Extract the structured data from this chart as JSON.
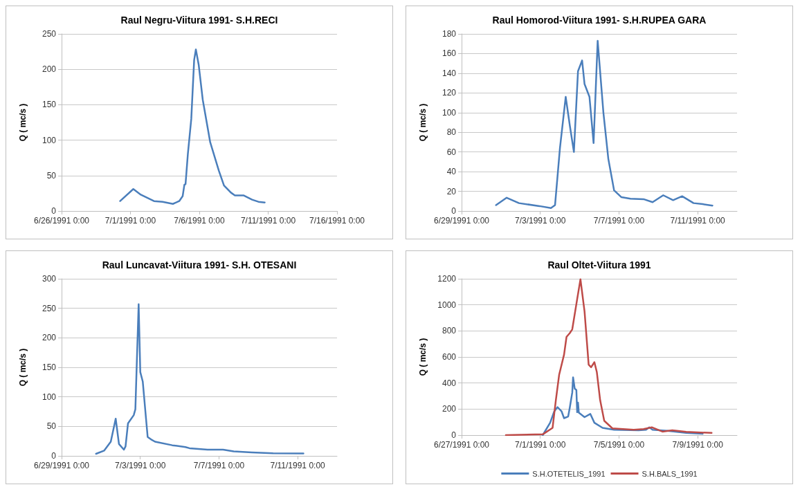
{
  "chart_data": [
    {
      "type": "line",
      "title": "Raul Negru-Viitura 1991- S.H.RECI",
      "ylabel": "Q ( mc/s )",
      "xlim": [
        "1991-06-26",
        "1991-07-16"
      ],
      "xticks": [
        {
          "value": "1991-06-26",
          "label": "6/26/1991 0:00"
        },
        {
          "value": "1991-07-01",
          "label": "7/1/1991 0:00"
        },
        {
          "value": "1991-07-06",
          "label": "7/6/1991 0:00"
        },
        {
          "value": "1991-07-11",
          "label": "7/11/1991 0:00"
        },
        {
          "value": "1991-07-16",
          "label": "7/16/1991 0:00"
        }
      ],
      "ylim": [
        0,
        250
      ],
      "yticks": [
        0,
        50,
        100,
        150,
        200,
        250
      ],
      "grid": "y",
      "legend": false,
      "marker": "none",
      "line_style": "solid",
      "series": [
        {
          "color": "#4a7ebb",
          "x": [
            "1991-06-30T06:00",
            "1991-07-01T05:00",
            "1991-07-01T18:00",
            "1991-07-02T17:00",
            "1991-07-03T08:00",
            "1991-07-04T02:00",
            "1991-07-04T13:00",
            "1991-07-04T19:00",
            "1991-07-04T22:00",
            "1991-07-05T00:00",
            "1991-07-05T04:00",
            "1991-07-05T10:00",
            "1991-07-05T15:00",
            "1991-07-05T18:00",
            "1991-07-05T23:00",
            "1991-07-06T06:00",
            "1991-07-06T19:00",
            "1991-07-07T10:00",
            "1991-07-07T19:00",
            "1991-07-08T07:00",
            "1991-07-08T14:00",
            "1991-07-09T05:00",
            "1991-07-09T20:00",
            "1991-07-10T07:00",
            "1991-07-10T18:00"
          ],
          "values": [
            14,
            31,
            23,
            14,
            13,
            10,
            14,
            21,
            37,
            38,
            80,
            130,
            213,
            228,
            206,
            157,
            97,
            57,
            36,
            26,
            22,
            22,
            16,
            13,
            12
          ]
        }
      ]
    },
    {
      "type": "line",
      "title": "Raul Homorod-Viitura 1991- S.H.RUPEA GARA",
      "ylabel": "Q ( mc/s )",
      "xlim": [
        "1991-06-29",
        "1991-07-13"
      ],
      "xticks": [
        {
          "value": "1991-06-29",
          "label": "6/29/1991 0:00"
        },
        {
          "value": "1991-07-03",
          "label": "7/3/1991 0:00"
        },
        {
          "value": "1991-07-07",
          "label": "7/7/1991 0:00"
        },
        {
          "value": "1991-07-11",
          "label": "7/11/1991 0:00"
        }
      ],
      "ylim": [
        0,
        180
      ],
      "yticks": [
        0,
        20,
        40,
        60,
        80,
        100,
        120,
        140,
        160,
        180
      ],
      "grid": "y",
      "legend": false,
      "marker": "none",
      "line_style": "solid",
      "series": [
        {
          "color": "#4a7ebb",
          "x": [
            "1991-06-30T18:00",
            "1991-07-01T07:00",
            "1991-07-01T22:00",
            "1991-07-02T23:00",
            "1991-07-03T13:00",
            "1991-07-03T18:00",
            "1991-07-04T00:00",
            "1991-07-04T07:00",
            "1991-07-04T12:00",
            "1991-07-04T17:00",
            "1991-07-04T22:00",
            "1991-07-05T03:00",
            "1991-07-05T06:00",
            "1991-07-05T12:00",
            "1991-07-05T17:00",
            "1991-07-05T22:00",
            "1991-07-06T05:00",
            "1991-07-06T11:00",
            "1991-07-06T18:00",
            "1991-07-07T03:00",
            "1991-07-07T14:00",
            "1991-07-08T06:00",
            "1991-07-08T17:00",
            "1991-07-09T06:00",
            "1991-07-09T18:00",
            "1991-07-10T05:00",
            "1991-07-10T19:00",
            "1991-07-11T06:00",
            "1991-07-11T18:00"
          ],
          "values": [
            6,
            13.5,
            8,
            5,
            3,
            6,
            64,
            116,
            87,
            60,
            142,
            153,
            129,
            116,
            69,
            173,
            100,
            53,
            21,
            14,
            12.5,
            12,
            9,
            16,
            11,
            15,
            8,
            7,
            5.5
          ]
        }
      ]
    },
    {
      "type": "line",
      "title": "Raul Luncavat-Viitura 1991- S.H. OTESANI",
      "ylabel": "Q ( mc/s )",
      "xlim": [
        "1991-06-29",
        "1991-07-13"
      ],
      "xticks": [
        {
          "value": "1991-06-29",
          "label": "6/29/1991 0:00"
        },
        {
          "value": "1991-07-03",
          "label": "7/3/1991 0:00"
        },
        {
          "value": "1991-07-07",
          "label": "7/7/1991 0:00"
        },
        {
          "value": "1991-07-11",
          "label": "7/11/1991 0:00"
        }
      ],
      "ylim": [
        0,
        300
      ],
      "yticks": [
        0,
        50,
        100,
        150,
        200,
        250,
        300
      ],
      "grid": "y",
      "legend": false,
      "marker": "none",
      "line_style": "solid",
      "series": [
        {
          "color": "#4a7ebb",
          "x": [
            "1991-06-30T18:00",
            "1991-07-01T04:00",
            "1991-07-01T12:00",
            "1991-07-01T18:00",
            "1991-07-01T22:00",
            "1991-07-02T04:00",
            "1991-07-02T06:00",
            "1991-07-02T09:00",
            "1991-07-02T16:00",
            "1991-07-02T18:00",
            "1991-07-02T20:00",
            "1991-07-02T22:00",
            "1991-07-03T00:00",
            "1991-07-03T03:00",
            "1991-07-03T07:00",
            "1991-07-03T09:00",
            "1991-07-03T13:00",
            "1991-07-03T18:00",
            "1991-07-04T15:00",
            "1991-07-05T07:00",
            "1991-07-05T12:00",
            "1991-07-06T10:00",
            "1991-07-07T05:00",
            "1991-07-07T18:00",
            "1991-07-08T16:00",
            "1991-07-09T18:00",
            "1991-07-11T07:00"
          ],
          "values": [
            3.5,
            9,
            24,
            63,
            20,
            10.5,
            16,
            55,
            69,
            79,
            169,
            257,
            142,
            126,
            63,
            32,
            28,
            24,
            18,
            15,
            13,
            10.5,
            10.5,
            7.5,
            6,
            4.5,
            4
          ]
        }
      ]
    },
    {
      "type": "line",
      "title": "Raul Oltet-Viitura 1991",
      "ylabel": "Q ( mc/s )",
      "xlim": [
        "1991-06-27",
        "1991-07-11"
      ],
      "xticks": [
        {
          "value": "1991-06-27",
          "label": "6/27/1991 0:00"
        },
        {
          "value": "1991-07-01",
          "label": "7/1/1991 0:00"
        },
        {
          "value": "1991-07-05",
          "label": "7/5/1991 0:00"
        },
        {
          "value": "1991-07-09",
          "label": "7/9/1991 0:00"
        }
      ],
      "ylim": [
        0,
        1200
      ],
      "yticks": [
        0,
        200,
        400,
        600,
        800,
        1000,
        1200
      ],
      "grid": "y",
      "legend": "bottom",
      "marker": "none",
      "line_style": "solid",
      "series": [
        {
          "name": "S.H.OTETELIS_1991",
          "color": "#4a7ebb",
          "x": [
            "1991-07-01T03:00",
            "1991-07-01T12:00",
            "1991-07-01T17:00",
            "1991-07-01T21:00",
            "1991-07-02T02:00",
            "1991-07-02T05:00",
            "1991-07-02T10:00",
            "1991-07-02T12:00",
            "1991-07-02T15:00",
            "1991-07-02T16:00",
            "1991-07-02T18:00",
            "1991-07-02T20:00",
            "1991-07-02T21:00",
            "1991-07-02T22:00",
            "1991-07-02T23:00",
            "1991-07-03T06:00",
            "1991-07-03T13:00",
            "1991-07-03T18:00",
            "1991-07-04T04:00",
            "1991-07-04T18:00",
            "1991-07-06T00:00",
            "1991-07-06T09:00",
            "1991-07-06T13:00",
            "1991-07-06T17:00",
            "1991-07-07T11:00",
            "1991-07-08T10:00",
            "1991-07-09T06:00"
          ],
          "values": [
            0,
            95,
            182,
            215,
            182,
            130,
            143,
            211,
            327,
            444,
            357,
            347,
            176,
            250,
            172,
            138,
            163,
            95,
            56,
            41,
            37,
            41,
            60,
            41,
            33,
            17,
            10
          ]
        },
        {
          "name": "S.H.BALS_1991",
          "color": "#be4b48",
          "x": [
            "1991-06-29T06:00",
            "1991-07-01T03:00",
            "1991-07-01T15:00",
            "1991-07-01T19:00",
            "1991-07-01T23:00",
            "1991-07-02T05:00",
            "1991-07-02T08:00",
            "1991-07-02T12:00",
            "1991-07-02T15:00",
            "1991-07-02T21:00",
            "1991-07-03T01:00",
            "1991-07-03T06:00",
            "1991-07-03T11:00",
            "1991-07-03T14:00",
            "1991-07-03T18:00",
            "1991-07-03T21:00",
            "1991-07-04T01:00",
            "1991-07-04T06:00",
            "1991-07-04T16:00",
            "1991-07-05T18:00",
            "1991-07-06T06:00",
            "1991-07-06T16:00",
            "1991-07-07T05:00",
            "1991-07-07T17:00",
            "1991-07-08T10:00",
            "1991-07-09T17:00"
          ],
          "values": [
            0,
            6,
            56,
            269,
            463,
            618,
            754,
            783,
            812,
            1044,
            1196,
            948,
            541,
            521,
            560,
            483,
            269,
            110,
            52,
            41,
            46,
            60,
            27,
            37,
            25,
            17
          ]
        }
      ]
    }
  ]
}
